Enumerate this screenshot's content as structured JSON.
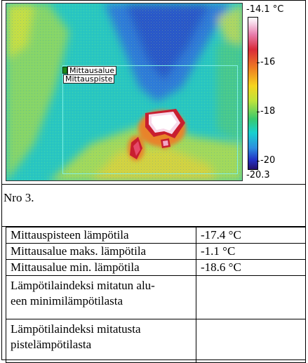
{
  "thermal_image": {
    "scale_max": "-14.1 °C",
    "scale_min": "-20.3",
    "scale_ticks": [
      "-16",
      "-18",
      "-20"
    ],
    "area_label": "Mittausalue",
    "point_label": "Mittauspiste"
  },
  "caption": "Nro 3.",
  "measurements": [
    {
      "label": "Mittauspisteen lämpötila",
      "value": "-17.4 °C"
    },
    {
      "label": "Mittausalue maks. lämpötila",
      "value": "-1.1 °C"
    },
    {
      "label": "Mittausalue min. lämpötila",
      "value": "-18.6 °C"
    },
    {
      "label": "Lämpötilaindeksi mitatun alu-\neen minimilämpötilasta",
      "value": ""
    },
    {
      "label": "Lämpötilaindeksi mitatusta\npistelämpötilasta",
      "value": ""
    }
  ]
}
